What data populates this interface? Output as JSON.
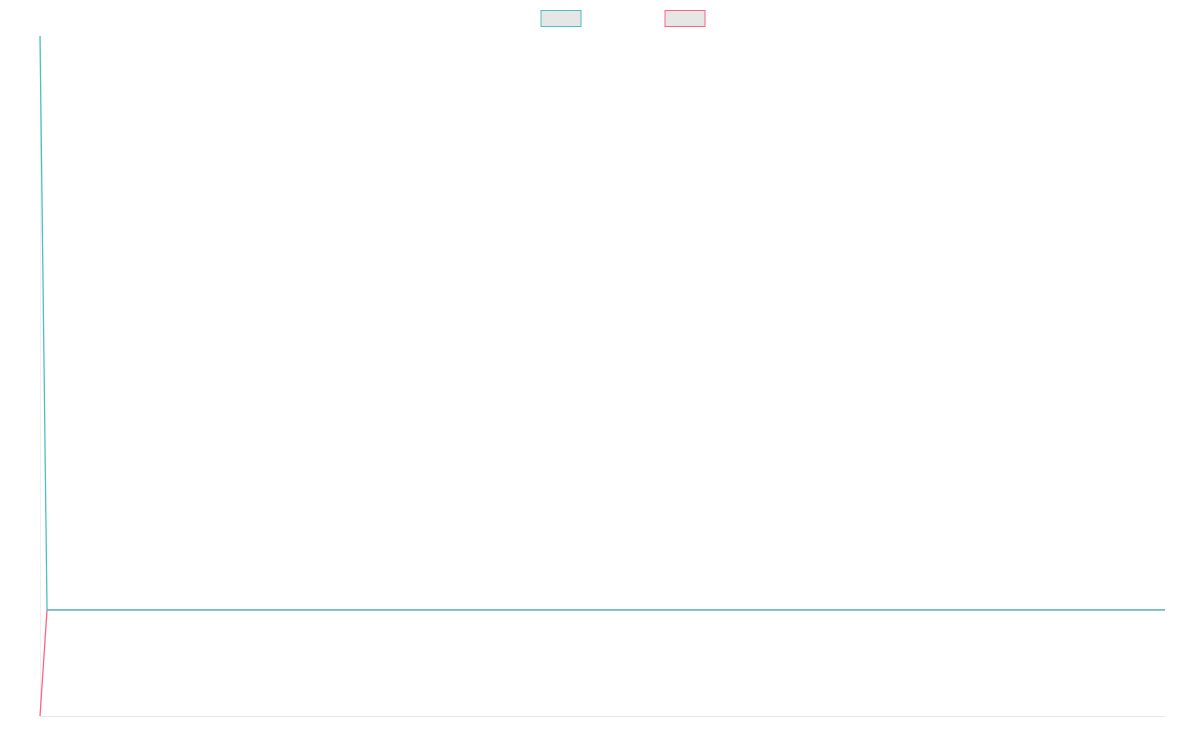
{
  "chart_data": {
    "type": "line",
    "x": [
      0,
      1,
      160
    ],
    "xlim": [
      0,
      160
    ],
    "ylim": [
      0,
      100
    ],
    "legend": "top",
    "series": [
      {
        "color": "#4bc0c0",
        "fill": "#e6e6e6",
        "values": [
          100,
          15.6,
          15.6
        ]
      },
      {
        "color": "#ff6384",
        "fill": "#e6e6e6",
        "values": [
          0,
          15.6,
          15.6
        ]
      }
    ]
  }
}
